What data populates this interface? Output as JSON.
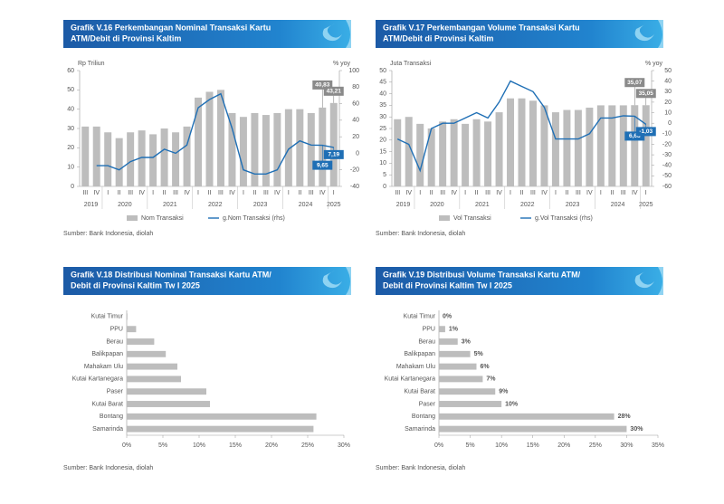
{
  "chart_data": [
    {
      "type": "bar_line",
      "title": [
        "Grafik V.16 Perkembangan Nominal Transaksi Kartu",
        "ATM/Debit di Provinsi Kaltim"
      ],
      "y_label": "Rp Triliun",
      "y2_label": "% yoy",
      "categories": [
        "III",
        "IV",
        "I",
        "II",
        "III",
        "IV",
        "I",
        "II",
        "III",
        "IV",
        "I",
        "II",
        "III",
        "IV",
        "I",
        "II",
        "III",
        "IV",
        "I",
        "II",
        "III",
        "IV",
        "I"
      ],
      "years": [
        "2019",
        "2020",
        "2021",
        "2022",
        "2023",
        "2024",
        "2025"
      ],
      "series": [
        {
          "name": "Nom Transaksi",
          "type": "bar",
          "color": "#bdbdbd",
          "values": [
            31,
            31,
            28,
            25,
            28,
            29,
            27,
            30,
            28,
            31,
            46,
            49,
            50,
            38,
            36,
            38,
            37,
            38,
            40,
            40,
            38,
            40.83,
            43.21
          ],
          "value_labels": [
            null,
            null,
            null,
            null,
            null,
            null,
            null,
            null,
            null,
            null,
            null,
            null,
            null,
            null,
            null,
            null,
            null,
            null,
            null,
            null,
            null,
            "40,83",
            "43,21"
          ]
        },
        {
          "name": "g.Nom Transaksi (rhs)",
          "type": "line",
          "axis": "y2",
          "color": "#1f6fb5",
          "values": [
            null,
            -15,
            -15,
            -20,
            -10,
            -5,
            -5,
            5,
            0,
            10,
            55,
            65,
            72,
            30,
            -20,
            -25,
            -25,
            -20,
            5,
            15,
            10,
            9.65,
            7.19
          ],
          "value_labels": [
            null,
            null,
            null,
            null,
            null,
            null,
            null,
            null,
            null,
            null,
            null,
            null,
            null,
            null,
            null,
            null,
            null,
            null,
            null,
            null,
            null,
            "9,65",
            "7,19"
          ]
        }
      ],
      "ylim": [
        0,
        60
      ],
      "yticks": [
        0,
        10,
        20,
        30,
        40,
        50,
        60
      ],
      "y2lim": [
        -40,
        100
      ],
      "y2ticks": [
        -40,
        -20,
        0,
        20,
        40,
        60,
        80,
        100
      ],
      "source": "Sumber: Bank Indonesia, diolah"
    },
    {
      "type": "bar_line",
      "title": [
        "Grafik V.17 Perkembangan Volume Transaksi Kartu",
        "ATM/Debit di Provinsi Kaltim"
      ],
      "y_label": "Juta Transaksi",
      "y2_label": "% yoy",
      "categories": [
        "III",
        "IV",
        "I",
        "II",
        "III",
        "IV",
        "I",
        "II",
        "III",
        "IV",
        "I",
        "II",
        "III",
        "IV",
        "I",
        "II",
        "III",
        "IV",
        "I",
        "II",
        "III",
        "IV",
        "I"
      ],
      "years": [
        "2019",
        "2020",
        "2021",
        "2022",
        "2023",
        "2024",
        "2025"
      ],
      "series": [
        {
          "name": "Vol Transaksi",
          "type": "bar",
          "color": "#bdbdbd",
          "values": [
            29,
            30,
            27,
            25,
            28,
            29,
            27,
            29,
            28,
            32,
            38,
            38,
            37,
            35,
            32,
            33,
            33,
            34,
            35,
            35,
            35,
            35.07,
            35.05
          ],
          "value_labels": [
            null,
            null,
            null,
            null,
            null,
            null,
            null,
            null,
            null,
            null,
            null,
            null,
            null,
            null,
            null,
            null,
            null,
            null,
            null,
            null,
            null,
            "35,07",
            "35,05"
          ]
        },
        {
          "name": "g.Vol Transaksi (rhs)",
          "type": "line",
          "axis": "y2",
          "color": "#1f6fb5",
          "values": [
            -15,
            -20,
            -45,
            -5,
            0,
            0,
            5,
            10,
            5,
            20,
            40,
            35,
            30,
            15,
            -15,
            -15,
            -15,
            -10,
            5,
            5,
            7,
            6.68,
            -1.03
          ],
          "value_labels": [
            null,
            null,
            null,
            null,
            null,
            null,
            null,
            null,
            null,
            null,
            null,
            null,
            null,
            null,
            null,
            null,
            null,
            null,
            null,
            null,
            null,
            "6,68",
            "-1,03"
          ]
        }
      ],
      "ylim": [
        0,
        50
      ],
      "yticks": [
        0,
        5,
        10,
        15,
        20,
        25,
        30,
        35,
        40,
        45,
        50
      ],
      "y2lim": [
        -60,
        50
      ],
      "y2ticks": [
        -60,
        -50,
        -40,
        -30,
        -20,
        -10,
        0,
        10,
        20,
        30,
        40,
        50
      ],
      "source": "Sumber: Bank Indonesia, diolah"
    },
    {
      "type": "hbar",
      "title": [
        "Grafik V.18 Distribusi Nominal Transaksi Kartu ATM/",
        "Debit di Provinsi Kaltim Tw I 2025"
      ],
      "categories": [
        "Kutai Timur",
        "PPU",
        "Berau",
        "Balikpapan",
        "Mahakam Ulu",
        "Kutai Kartanegara",
        "Paser",
        "Kutai Barat",
        "Bontang",
        "Samarinda"
      ],
      "values": [
        0.1,
        1.3,
        3.8,
        5.4,
        7.0,
        7.5,
        11.0,
        11.5,
        26.2,
        25.8
      ],
      "color": "#bdbdbd",
      "xlim": [
        0,
        30
      ],
      "xticks": [
        {
          "value": 0,
          "label": "0%"
        },
        {
          "value": 5,
          "label": "5%"
        },
        {
          "value": 10,
          "label": "10%"
        },
        {
          "value": 15,
          "label": "15%"
        },
        {
          "value": 20,
          "label": "20%"
        },
        {
          "value": 25,
          "label": "25%"
        },
        {
          "value": 30,
          "label": "30%"
        }
      ],
      "source": "Sumber: Bank Indonesia, diolah"
    },
    {
      "type": "hbar",
      "title": [
        "Grafik V.19 Distribusi Volume Transaksi Kartu ATM/",
        "Debit di Provinsi Kaltim Tw I 2025"
      ],
      "categories": [
        "Kutai Timur",
        "PPU",
        "Berau",
        "Balikpapan",
        "Mahakam Ulu",
        "Kutai Kartanegara",
        "Kutai Barat",
        "Paser",
        "Bontang",
        "Samarinda"
      ],
      "values": [
        0,
        1,
        3,
        5,
        6,
        7,
        9,
        10,
        28,
        30
      ],
      "value_labels": [
        "0%",
        "1%",
        "3%",
        "5%",
        "6%",
        "7%",
        "9%",
        "10%",
        "28%",
        "30%"
      ],
      "color": "#bdbdbd",
      "xlim": [
        0,
        35
      ],
      "xticks": [
        {
          "value": 0,
          "label": "0%"
        },
        {
          "value": 5,
          "label": "5%"
        },
        {
          "value": 10,
          "label": "10%"
        },
        {
          "value": 15,
          "label": "15%"
        },
        {
          "value": 20,
          "label": "20%"
        },
        {
          "value": 25,
          "label": "25%"
        },
        {
          "value": 30,
          "label": "30%"
        },
        {
          "value": 35,
          "label": "35%"
        }
      ],
      "source": "Sumber: Bank Indonesia, diolah"
    }
  ]
}
